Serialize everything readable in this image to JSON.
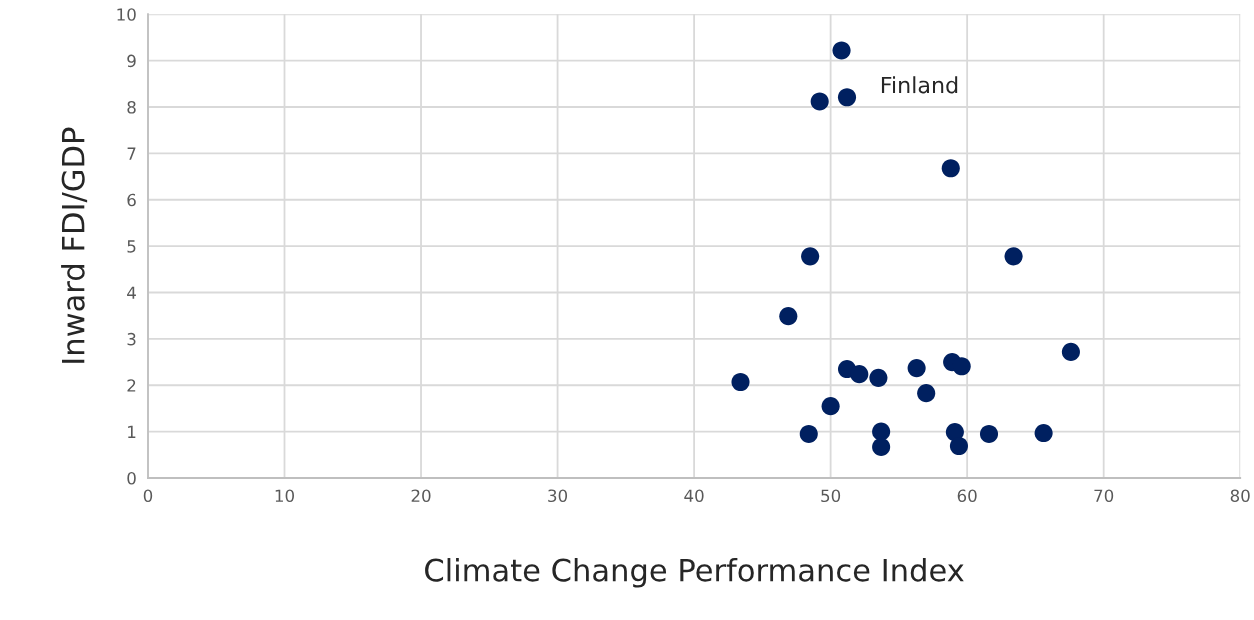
{
  "chart_data": {
    "type": "scatter",
    "xlabel": "Climate Change Performance Index",
    "ylabel": "Inward FDI/GDP",
    "annotations": [
      "Finland"
    ],
    "x": [
      50.8,
      49.2,
      51.2,
      58.8,
      48.5,
      63.4,
      46.9,
      43.4,
      51.2,
      52.1,
      53.5,
      56.3,
      58.9,
      59.6,
      67.6,
      57.0,
      50.0,
      48.4,
      53.7,
      53.7,
      59.1,
      59.4,
      61.6,
      65.6
    ],
    "series": [
      {
        "color": "#002060",
        "values": [
          9.22,
          8.12,
          8.21,
          6.68,
          4.78,
          4.78,
          3.49,
          2.07,
          2.35,
          2.24,
          2.16,
          2.37,
          2.5,
          2.41,
          2.72,
          1.83,
          1.55,
          0.95,
          1.0,
          0.67,
          0.99,
          0.69,
          0.95,
          0.97
        ]
      }
    ],
    "xlim": [
      0,
      80
    ],
    "xticks": [
      0,
      10,
      20,
      30,
      40,
      50,
      60,
      70,
      80
    ],
    "ylim": [
      0,
      10
    ],
    "yticks": [
      0,
      1,
      2,
      3,
      4,
      5,
      6,
      7,
      8,
      9,
      10
    ],
    "grid": true,
    "marker": "circle"
  }
}
